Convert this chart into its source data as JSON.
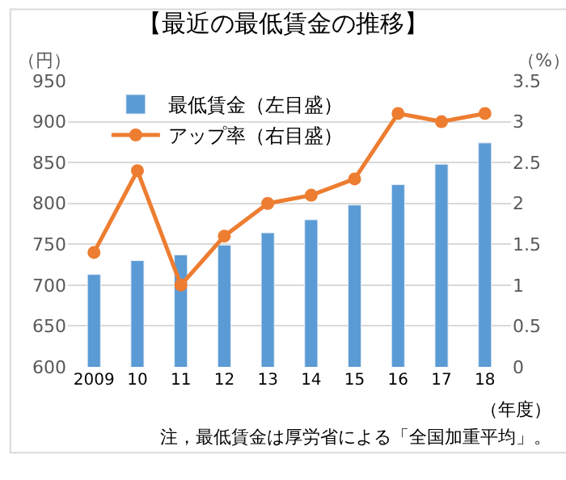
{
  "chart_data": {
    "type": "bar",
    "title": "【最近の最低賃金の推移】",
    "ylabel": "（円）",
    "y2label": "（%）",
    "xlabel": "（年度）",
    "categories": [
      "2009",
      "10",
      "11",
      "12",
      "13",
      "14",
      "15",
      "16",
      "17",
      "18"
    ],
    "series": [
      {
        "name": "最低賃金（左目盛）",
        "color": "#5b9bd5",
        "values": [
          713,
          730,
          737,
          749,
          764,
          780,
          798,
          823,
          848,
          874
        ]
      },
      {
        "name": "アップ率（右目盛）",
        "type": "line",
        "axis": "y2",
        "color": "#ed7d31",
        "marker": "circle",
        "values": [
          1.4,
          2.4,
          1.0,
          1.6,
          2.0,
          2.1,
          2.3,
          3.1,
          3.0,
          3.1
        ]
      }
    ],
    "ylim": [
      600,
      950
    ],
    "yticks": [
      600,
      650,
      700,
      750,
      800,
      850,
      900,
      950
    ],
    "y2lim": [
      0,
      3.5
    ],
    "y2ticks": [
      0,
      0.5,
      1,
      1.5,
      2,
      2.5,
      3,
      3.5
    ],
    "grid": "y",
    "legend": "top left",
    "annotations": [
      "注，最低賃金は厚労省による「全国加重平均」。"
    ]
  }
}
